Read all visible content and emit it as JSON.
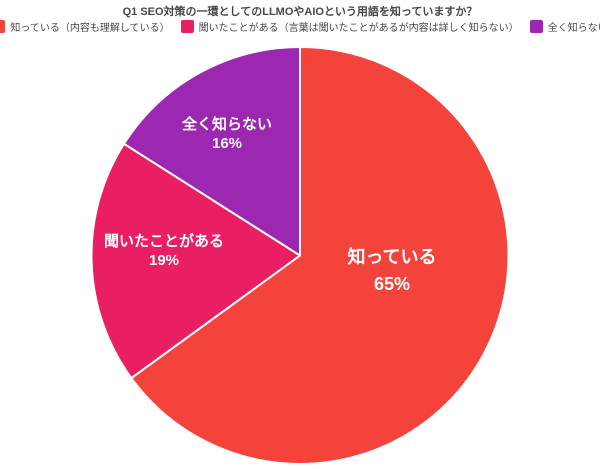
{
  "chart_data": {
    "type": "pie",
    "title": "Q1 SEO対策の一環としてのLLMOやAIOという用語を知っていますか？",
    "unit": "%",
    "direction": "clockwise",
    "start_angle_deg": 0,
    "legend_position": "top",
    "label_style": "inside, name + percent, white bold",
    "background_color": "#ffffff",
    "text_color": "#464646",
    "slice_border_color": "#ffffff",
    "slices": [
      {
        "name": "知っている",
        "percent": 65,
        "percent_label": "65%",
        "color": "#F4433B",
        "legend_label": "知っている（内容も理解している）"
      },
      {
        "name": "聞いたことがある",
        "percent": 19,
        "percent_label": "19%",
        "color": "#E91E63",
        "legend_label": "聞いたことがある（言葉は聞いたことがあるが内容は詳しく知らない）"
      },
      {
        "name": "全く知らない",
        "percent": 16,
        "percent_label": "16%",
        "color": "#9C27B0",
        "legend_label": "全く知らない"
      }
    ]
  }
}
